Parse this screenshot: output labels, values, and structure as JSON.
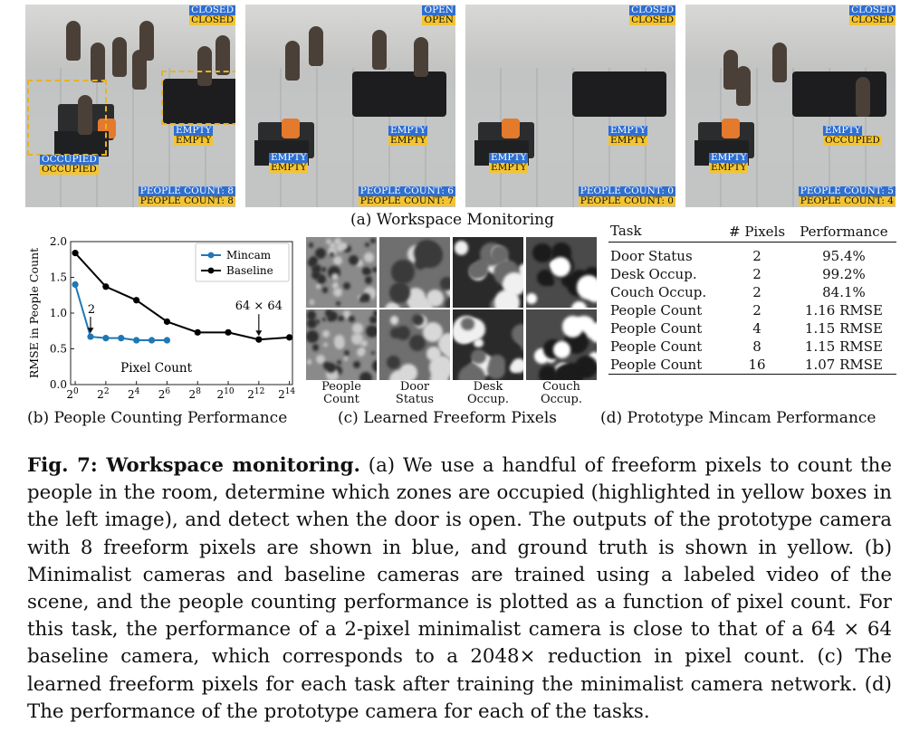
{
  "panel_a": {
    "caption": "(a) Workspace Monitoring",
    "frames": [
      {
        "door": [
          "CLOSED",
          "CLOSED"
        ],
        "zones": [
          [
            "OCCUPIED",
            "OCCUPIED"
          ],
          [
            "EMPTY",
            "EMPTY"
          ]
        ],
        "count": [
          "PEOPLE COUNT: 8",
          "PEOPLE COUNT: 8"
        ]
      },
      {
        "door": [
          "OPEN",
          "OPEN"
        ],
        "zones": [
          [
            "EMPTY",
            "EMPTY"
          ],
          [
            "EMPTY",
            "EMPTY"
          ]
        ],
        "count": [
          "PEOPLE COUNT: 6",
          "PEOPLE COUNT: 7"
        ]
      },
      {
        "door": [
          "CLOSED",
          "CLOSED"
        ],
        "zones": [
          [
            "EMPTY",
            "EMPTY"
          ],
          [
            "EMPTY",
            "EMPTY"
          ]
        ],
        "count": [
          "PEOPLE COUNT: 0",
          "PEOPLE COUNT: 0"
        ]
      },
      {
        "door": [
          "CLOSED",
          "CLOSED"
        ],
        "zones": [
          [
            "EMPTY",
            "EMPTY"
          ],
          [
            "EMPTY",
            "OCCUPIED"
          ]
        ],
        "count": [
          "PEOPLE COUNT: 5",
          "PEOPLE COUNT: 4"
        ]
      }
    ],
    "colors": {
      "prediction": "#2f6fd0",
      "ground_truth": "#f4c430"
    }
  },
  "panel_b": {
    "caption": "(b) People Counting Performance",
    "inner_label": "Pixel Count",
    "arrow_labels": {
      "left": "2",
      "right": "64 × 64"
    }
  },
  "panel_c": {
    "caption": "(c) Learned Freeform Pixels",
    "columns": [
      {
        "line1": "People",
        "line2": "Count"
      },
      {
        "line1": "Door",
        "line2": "Status"
      },
      {
        "line1": "Desk",
        "line2": "Occup."
      },
      {
        "line1": "Couch",
        "line2": "Occup."
      }
    ]
  },
  "panel_d": {
    "caption": "(d) Prototype Mincam Performance",
    "headers": [
      "Task",
      "# Pixels",
      "Performance"
    ],
    "rows": [
      [
        "Door Status",
        "2",
        "95.4%"
      ],
      [
        "Desk Occup.",
        "2",
        "99.2%"
      ],
      [
        "Couch Occup.",
        "2",
        "84.1%"
      ],
      [
        "People Count",
        "2",
        "1.16 RMSE"
      ],
      [
        "People Count",
        "4",
        "1.15 RMSE"
      ],
      [
        "People Count",
        "8",
        "1.15 RMSE"
      ],
      [
        "People Count",
        "16",
        "1.07 RMSE"
      ]
    ]
  },
  "figure_caption": {
    "label": "Fig. 7: Workspace monitoring.",
    "text": " (a) We use a handful of freeform pixels to count the people in the room, determine which zones are occupied (highlighted in yellow boxes in the left image), and detect when the door is open. The outputs of the prototype camera with 8 freeform pixels are shown in blue, and ground truth is shown in yellow. (b) Minimalist cameras and baseline cameras are trained using a labeled video of the scene, and the people counting performance is plotted as a function of pixel count. For this task, the performance of a 2-pixel minimalist camera is close to that of a 64 × 64 baseline camera, which corresponds to a 2048× reduction in pixel count. (c) The learned freeform pixels for each task after training the minimalist camera network. (d) The performance of the prototype camera for each of the tasks."
  },
  "chart_data": {
    "type": "line",
    "xlabel": "Pixel Count",
    "ylabel": "RMSE in People Count",
    "x_scale": "log2",
    "x_ticks": [
      "2^0",
      "2^2",
      "2^4",
      "2^6",
      "2^8",
      "2^10",
      "2^12",
      "2^14"
    ],
    "xlim_log2": [
      -0.3,
      14.2
    ],
    "ylim": [
      0.0,
      2.0
    ],
    "y_ticks": [
      "0.0",
      "0.5",
      "1.0",
      "1.5",
      "2.0"
    ],
    "legend_position": "top-right",
    "series": [
      {
        "name": "Mincam",
        "color": "#1f77b4",
        "x_log2": [
          0,
          1,
          2,
          3,
          4,
          5,
          6
        ],
        "values": [
          1.4,
          0.67,
          0.65,
          0.65,
          0.62,
          0.62,
          0.62
        ]
      },
      {
        "name": "Baseline",
        "color": "#000000",
        "x_log2": [
          0,
          2,
          4,
          6,
          8,
          10,
          12,
          14
        ],
        "values": [
          1.84,
          1.37,
          1.18,
          0.88,
          0.73,
          0.73,
          0.63,
          0.66
        ]
      }
    ]
  }
}
